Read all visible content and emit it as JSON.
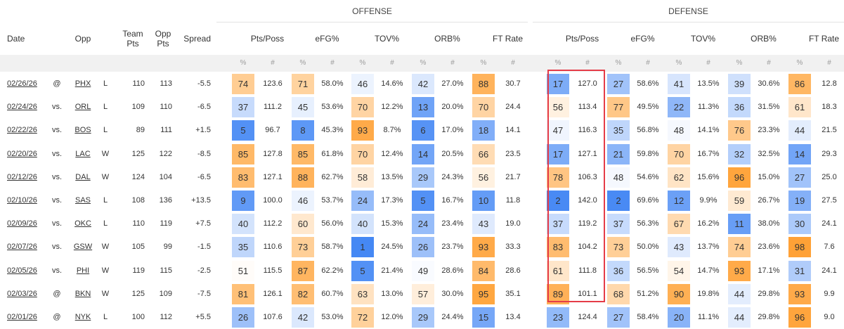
{
  "groups": {
    "offense": "OFFENSE",
    "defense": "DEFENSE"
  },
  "headers": {
    "date": "Date",
    "opp": "Opp",
    "team_pts": "Team Pts",
    "opp_pts": "Opp Pts",
    "spread": "Spread",
    "off": [
      "Pts/Poss",
      "eFG%",
      "TOV%",
      "ORB%",
      "FT Rate"
    ],
    "def": [
      "Pts/Poss",
      "eFG%",
      "TOV%",
      "ORB%",
      "FT Rate"
    ]
  },
  "sub": {
    "pct": "%",
    "num": "#"
  },
  "rows": [
    {
      "date": "02/26/26",
      "loc": "@",
      "opp": "PHX",
      "res": "L",
      "tp": "110",
      "op": "113",
      "spread": "-5.5",
      "off": [
        {
          "p": "74",
          "v": "123.6"
        },
        {
          "p": "71",
          "v": "58.0%"
        },
        {
          "p": "46",
          "v": "14.6%"
        },
        {
          "p": "42",
          "v": "27.0%"
        },
        {
          "p": "88",
          "v": "30.7"
        }
      ],
      "def": [
        {
          "p": "17",
          "v": "127.0"
        },
        {
          "p": "27",
          "v": "58.6%"
        },
        {
          "p": "41",
          "v": "13.5%"
        },
        {
          "p": "39",
          "v": "30.6%"
        },
        {
          "p": "86",
          "v": "12.8"
        }
      ]
    },
    {
      "date": "02/24/26",
      "loc": "vs.",
      "opp": "ORL",
      "res": "L",
      "tp": "109",
      "op": "110",
      "spread": "-6.5",
      "off": [
        {
          "p": "37",
          "v": "111.2"
        },
        {
          "p": "45",
          "v": "53.6%"
        },
        {
          "p": "70",
          "v": "12.2%"
        },
        {
          "p": "13",
          "v": "20.0%"
        },
        {
          "p": "70",
          "v": "24.4"
        }
      ],
      "def": [
        {
          "p": "56",
          "v": "113.4"
        },
        {
          "p": "77",
          "v": "49.5%"
        },
        {
          "p": "22",
          "v": "11.3%"
        },
        {
          "p": "36",
          "v": "31.5%"
        },
        {
          "p": "61",
          "v": "18.3"
        }
      ]
    },
    {
      "date": "02/22/26",
      "loc": "vs.",
      "opp": "BOS",
      "res": "L",
      "tp": "89",
      "op": "111",
      "spread": "+1.5",
      "off": [
        {
          "p": "5",
          "v": "96.7"
        },
        {
          "p": "8",
          "v": "45.3%"
        },
        {
          "p": "93",
          "v": "8.7%"
        },
        {
          "p": "6",
          "v": "17.0%"
        },
        {
          "p": "18",
          "v": "14.1"
        }
      ],
      "def": [
        {
          "p": "47",
          "v": "116.3"
        },
        {
          "p": "35",
          "v": "56.8%"
        },
        {
          "p": "48",
          "v": "14.1%"
        },
        {
          "p": "76",
          "v": "23.3%"
        },
        {
          "p": "44",
          "v": "21.5"
        }
      ]
    },
    {
      "date": "02/20/26",
      "loc": "vs.",
      "opp": "LAC",
      "res": "W",
      "tp": "125",
      "op": "122",
      "spread": "-8.5",
      "off": [
        {
          "p": "85",
          "v": "127.8"
        },
        {
          "p": "85",
          "v": "61.8%"
        },
        {
          "p": "70",
          "v": "12.4%"
        },
        {
          "p": "14",
          "v": "20.5%"
        },
        {
          "p": "66",
          "v": "23.5"
        }
      ],
      "def": [
        {
          "p": "17",
          "v": "127.1"
        },
        {
          "p": "21",
          "v": "59.8%"
        },
        {
          "p": "70",
          "v": "16.7%"
        },
        {
          "p": "32",
          "v": "32.5%"
        },
        {
          "p": "14",
          "v": "29.3"
        }
      ]
    },
    {
      "date": "02/12/26",
      "loc": "vs.",
      "opp": "DAL",
      "res": "W",
      "tp": "124",
      "op": "104",
      "spread": "-6.5",
      "off": [
        {
          "p": "83",
          "v": "127.1"
        },
        {
          "p": "88",
          "v": "62.7%"
        },
        {
          "p": "58",
          "v": "13.5%"
        },
        {
          "p": "29",
          "v": "24.3%"
        },
        {
          "p": "56",
          "v": "21.7"
        }
      ],
      "def": [
        {
          "p": "78",
          "v": "106.3"
        },
        {
          "p": "48",
          "v": "54.6%"
        },
        {
          "p": "62",
          "v": "15.6%"
        },
        {
          "p": "96",
          "v": "15.0%"
        },
        {
          "p": "27",
          "v": "25.0"
        }
      ]
    },
    {
      "date": "02/10/26",
      "loc": "vs.",
      "opp": "SAS",
      "res": "L",
      "tp": "108",
      "op": "136",
      "spread": "+13.5",
      "off": [
        {
          "p": "9",
          "v": "100.0"
        },
        {
          "p": "46",
          "v": "53.7%"
        },
        {
          "p": "24",
          "v": "17.3%"
        },
        {
          "p": "5",
          "v": "16.7%"
        },
        {
          "p": "10",
          "v": "11.8"
        }
      ],
      "def": [
        {
          "p": "2",
          "v": "142.0"
        },
        {
          "p": "2",
          "v": "69.6%"
        },
        {
          "p": "12",
          "v": "9.9%"
        },
        {
          "p": "59",
          "v": "26.7%"
        },
        {
          "p": "19",
          "v": "27.5"
        }
      ]
    },
    {
      "date": "02/09/26",
      "loc": "vs.",
      "opp": "OKC",
      "res": "L",
      "tp": "110",
      "op": "119",
      "spread": "+7.5",
      "off": [
        {
          "p": "40",
          "v": "112.2"
        },
        {
          "p": "60",
          "v": "56.0%"
        },
        {
          "p": "40",
          "v": "15.3%"
        },
        {
          "p": "24",
          "v": "23.4%"
        },
        {
          "p": "43",
          "v": "19.0"
        }
      ],
      "def": [
        {
          "p": "37",
          "v": "119.2"
        },
        {
          "p": "37",
          "v": "56.3%"
        },
        {
          "p": "67",
          "v": "16.2%"
        },
        {
          "p": "11",
          "v": "38.0%"
        },
        {
          "p": "30",
          "v": "24.1"
        }
      ]
    },
    {
      "date": "02/07/26",
      "loc": "vs.",
      "opp": "GSW",
      "res": "W",
      "tp": "105",
      "op": "99",
      "spread": "-1.5",
      "off": [
        {
          "p": "35",
          "v": "110.6"
        },
        {
          "p": "73",
          "v": "58.7%"
        },
        {
          "p": "1",
          "v": "24.5%"
        },
        {
          "p": "26",
          "v": "23.7%"
        },
        {
          "p": "93",
          "v": "33.3"
        }
      ],
      "def": [
        {
          "p": "83",
          "v": "104.2"
        },
        {
          "p": "73",
          "v": "50.0%"
        },
        {
          "p": "43",
          "v": "13.7%"
        },
        {
          "p": "74",
          "v": "23.6%"
        },
        {
          "p": "98",
          "v": "7.6"
        }
      ]
    },
    {
      "date": "02/05/26",
      "loc": "vs.",
      "opp": "PHI",
      "res": "W",
      "tp": "119",
      "op": "115",
      "spread": "-2.5",
      "off": [
        {
          "p": "51",
          "v": "115.5"
        },
        {
          "p": "87",
          "v": "62.2%"
        },
        {
          "p": "5",
          "v": "21.4%"
        },
        {
          "p": "49",
          "v": "28.6%"
        },
        {
          "p": "84",
          "v": "28.6"
        }
      ],
      "def": [
        {
          "p": "61",
          "v": "111.8"
        },
        {
          "p": "36",
          "v": "56.5%"
        },
        {
          "p": "54",
          "v": "14.7%"
        },
        {
          "p": "93",
          "v": "17.1%"
        },
        {
          "p": "31",
          "v": "24.1"
        }
      ]
    },
    {
      "date": "02/03/26",
      "loc": "@",
      "opp": "BKN",
      "res": "W",
      "tp": "125",
      "op": "109",
      "spread": "-7.5",
      "off": [
        {
          "p": "81",
          "v": "126.1"
        },
        {
          "p": "82",
          "v": "60.7%"
        },
        {
          "p": "63",
          "v": "13.0%"
        },
        {
          "p": "57",
          "v": "30.0%"
        },
        {
          "p": "95",
          "v": "35.1"
        }
      ],
      "def": [
        {
          "p": "89",
          "v": "101.1"
        },
        {
          "p": "68",
          "v": "51.2%"
        },
        {
          "p": "90",
          "v": "19.8%"
        },
        {
          "p": "44",
          "v": "29.8%"
        },
        {
          "p": "93",
          "v": "9.9"
        }
      ]
    },
    {
      "date": "02/01/26",
      "loc": "@",
      "opp": "NYK",
      "res": "L",
      "tp": "100",
      "op": "112",
      "spread": "+5.5",
      "off": [
        {
          "p": "26",
          "v": "107.6"
        },
        {
          "p": "42",
          "v": "53.0%"
        },
        {
          "p": "72",
          "v": "12.0%"
        },
        {
          "p": "29",
          "v": "24.4%"
        },
        {
          "p": "15",
          "v": "13.4"
        }
      ],
      "def": [
        {
          "p": "23",
          "v": "124.4"
        },
        {
          "p": "27",
          "v": "58.4%"
        },
        {
          "p": "20",
          "v": "11.1%"
        },
        {
          "p": "44",
          "v": "29.8%"
        },
        {
          "p": "96",
          "v": "9.0"
        }
      ]
    }
  ]
}
